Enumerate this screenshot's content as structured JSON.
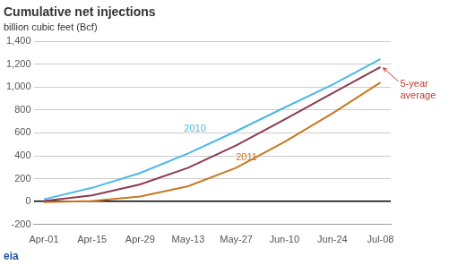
{
  "chart_data": {
    "type": "line",
    "title": "Cumulative net injections",
    "subtitle": "billion cubic feet (Bcf)",
    "x": [
      0,
      14,
      28,
      42,
      56,
      70,
      84,
      98
    ],
    "series": [
      {
        "color": "#4db8e8",
        "values": [
          20,
          120,
          250,
          420,
          615,
          820,
          1020,
          1245
        ]
      },
      {
        "color": "#8b3a52",
        "values": [
          5,
          55,
          150,
          295,
          490,
          715,
          945,
          1175
        ]
      },
      {
        "color": "#c87820",
        "values": [
          -5,
          5,
          45,
          135,
          295,
          520,
          770,
          1040
        ]
      }
    ],
    "xlim": [
      -3,
      101
    ],
    "xticks": [
      {
        "value": 0,
        "label": "Apr-01"
      },
      {
        "value": 14,
        "label": "Apr-15"
      },
      {
        "value": 28,
        "label": "Apr-29"
      },
      {
        "value": 42,
        "label": "May-13"
      },
      {
        "value": 56,
        "label": "May-27"
      },
      {
        "value": 70,
        "label": "Jun-10"
      },
      {
        "value": 84,
        "label": "Jun-24"
      },
      {
        "value": 98,
        "label": "Jul-08"
      }
    ],
    "ylim": [
      -200,
      1400
    ],
    "yticks": [
      -200,
      0,
      200,
      400,
      600,
      800,
      {
        "value": 1000,
        "label": "1,000"
      },
      {
        "value": 1200,
        "label": "1,200"
      },
      {
        "value": 1400,
        "label": "1,400"
      }
    ],
    "grid": true,
    "annotations": [
      {
        "text": "2010",
        "x": 44,
        "y": 590,
        "color": "#4db8e8"
      },
      {
        "text": "2011",
        "x": 59,
        "y": 345,
        "color": "#c87820"
      },
      {
        "text": "5-year\naverage",
        "x": 98,
        "y": 1175,
        "color": "#c0392b",
        "arrow": true
      },
      {
        "text": "eia",
        "color": "#2255aa"
      }
    ]
  }
}
